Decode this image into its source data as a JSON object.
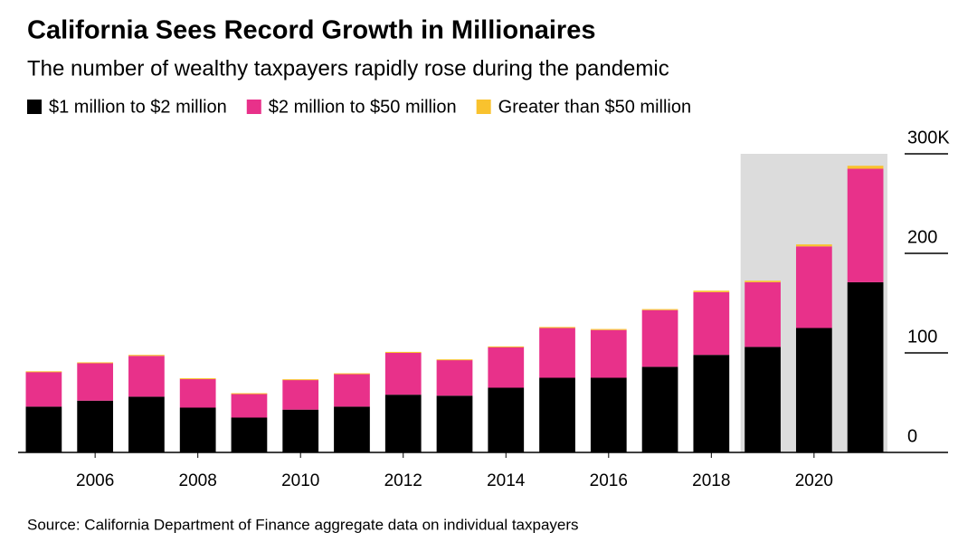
{
  "chart_data": {
    "type": "bar",
    "stacked": true,
    "title": "California Sees Record Growth in Millionaires",
    "subtitle": "The number of wealthy taxpayers rapidly rose during the pandemic",
    "source": "Source: California Department of Finance aggregate data on individual taxpayers",
    "x": [
      2005,
      2006,
      2007,
      2008,
      2009,
      2010,
      2011,
      2012,
      2013,
      2014,
      2015,
      2016,
      2017,
      2018,
      2019,
      2020,
      2021
    ],
    "xlim": [
      2004.5,
      2021.5
    ],
    "xticks": [
      2006,
      2008,
      2010,
      2012,
      2014,
      2016,
      2018,
      2020
    ],
    "ylim": [
      0,
      300
    ],
    "yticks": [
      0,
      100,
      200,
      {
        "value": 300,
        "label": "300K"
      }
    ],
    "highlight": [
      2019,
      2021
    ],
    "series": [
      {
        "name": "$1 million to $2 million",
        "color": "#000000",
        "values": [
          46,
          52,
          56,
          45,
          35,
          43,
          46,
          58,
          57,
          65,
          75,
          75,
          86,
          98,
          106,
          125,
          171
        ]
      },
      {
        "name": "$2 million to $50 million",
        "color": "#e8318a",
        "values": [
          35,
          38,
          41,
          29,
          24,
          30,
          33,
          42,
          36,
          41,
          50,
          48,
          57,
          63,
          65,
          82,
          114
        ]
      },
      {
        "name": "Greater than $50 million",
        "color": "#f9c22e",
        "values": [
          0.5,
          0.5,
          1,
          0.5,
          0.5,
          0.5,
          0.5,
          1,
          0.5,
          0.5,
          1,
          1,
          1,
          1.5,
          1.5,
          2,
          3
        ]
      }
    ]
  }
}
